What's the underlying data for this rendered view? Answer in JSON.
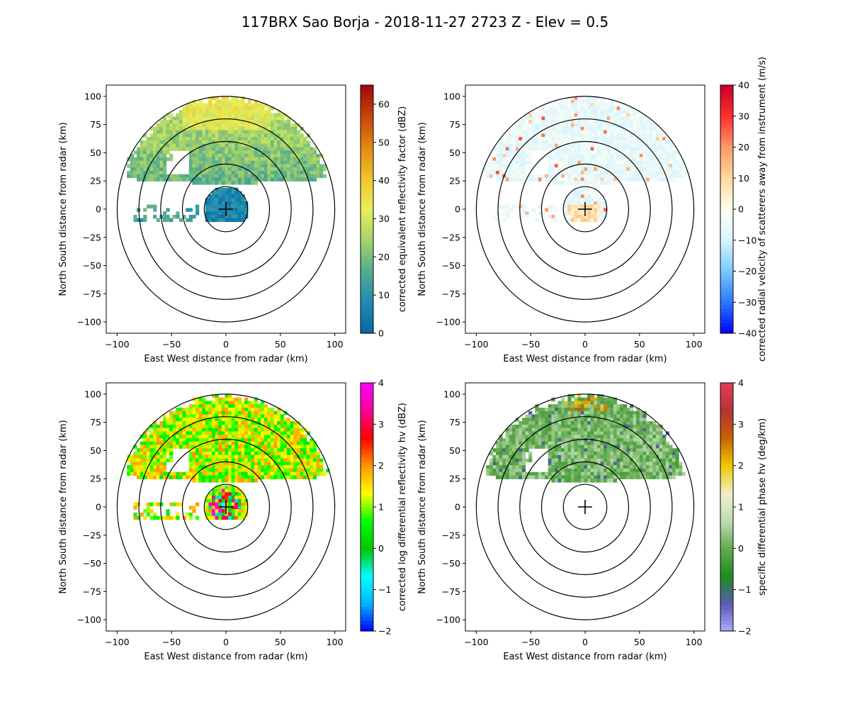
{
  "figure": {
    "title": "117BRX Sao Borja - 2018-11-27 2723 Z -  Elev = 0.5"
  },
  "chart_data": [
    {
      "type": "heatmap",
      "field": "reflectivity",
      "xlabel": "East West distance from radar (km)",
      "ylabel": "North South distance from radar (km)",
      "xlim": [
        -110,
        110
      ],
      "ylim": [
        -110,
        110
      ],
      "xticks": [
        "−100",
        "−50",
        "0",
        "50",
        "100"
      ],
      "yticks": [
        "100",
        "75",
        "50",
        "25",
        "0",
        "−25",
        "−50",
        "−75",
        "−100"
      ],
      "range_rings_km": [
        20,
        40,
        60,
        80,
        100
      ],
      "colorbar": {
        "label": "corrected equivalent reflectivity factor (dBZ)",
        "min": 0,
        "max": 65,
        "ticks": [
          "0",
          "10",
          "20",
          "30",
          "40",
          "50",
          "60"
        ],
        "tick_values": [
          0,
          10,
          20,
          30,
          40,
          50,
          60
        ],
        "stops": [
          "#0a64a8",
          "#1e8db0",
          "#55ab8f",
          "#a3d36a",
          "#e8ef5a",
          "#f0c52c",
          "#e08a12",
          "#c8440a",
          "#a00a0a"
        ]
      },
      "echo_description": "Echo mostly north of radar, 0-35 dBZ"
    },
    {
      "type": "heatmap",
      "field": "velocity",
      "xlabel": "East West distance from radar (km)",
      "ylabel": "North South distance from radar (km)",
      "xlim": [
        -110,
        110
      ],
      "ylim": [
        -110,
        110
      ],
      "xticks": [
        "−100",
        "−50",
        "0",
        "50",
        "100"
      ],
      "yticks": [
        "100",
        "75",
        "50",
        "25",
        "0",
        "−25",
        "−50",
        "−75",
        "−100"
      ],
      "range_rings_km": [
        20,
        40,
        60,
        80,
        100
      ],
      "colorbar": {
        "label": "corrected radial velocity of scatterers away from instrument (m/s)",
        "min": -40,
        "max": 40,
        "ticks": [
          "−40",
          "−30",
          "−20",
          "−10",
          "0",
          "10",
          "20",
          "30",
          "40"
        ],
        "tick_values": [
          -40,
          -30,
          -20,
          -10,
          0,
          10,
          20,
          30,
          40
        ],
        "stops": [
          "#0000ff",
          "#2a78ff",
          "#78c8ff",
          "#d8f4ff",
          "#fffff0",
          "#ffd9a0",
          "#ff9a6a",
          "#ff3030",
          "#c8002a"
        ]
      },
      "echo_description": "Mostly light blue (about −10 m/s) to the north"
    },
    {
      "type": "heatmap",
      "field": "differential_reflectivity",
      "xlabel": "East West distance from radar (km)",
      "ylabel": "North South distance from radar (km)",
      "xlim": [
        -110,
        110
      ],
      "ylim": [
        -110,
        110
      ],
      "xticks": [
        "−100",
        "−50",
        "0",
        "50",
        "100"
      ],
      "yticks": [
        "100",
        "75",
        "50",
        "25",
        "0",
        "−25",
        "−50",
        "−75",
        "−100"
      ],
      "range_rings_km": [
        20,
        40,
        60,
        80,
        100
      ],
      "colorbar": {
        "label": "corrected log differential reflectivity hv (dBZ)",
        "min": -2,
        "max": 4,
        "ticks": [
          "−2",
          "−1",
          "0",
          "1",
          "2",
          "3",
          "4"
        ],
        "tick_values": [
          -2,
          -1,
          0,
          1,
          2,
          3,
          4
        ],
        "stops": [
          "#0000ff",
          "#00b4ff",
          "#00ffff",
          "#00c800",
          "#00ff00",
          "#ffff00",
          "#ff9600",
          "#ff0000",
          "#ff0096",
          "#ff00ff"
        ]
      },
      "echo_description": "Mostly 0.5-2 dB north of radar"
    },
    {
      "type": "heatmap",
      "field": "specific_differential_phase",
      "xlabel": "East West distance from radar (km)",
      "ylabel": "North South distance from radar (km)",
      "xlim": [
        -110,
        110
      ],
      "ylim": [
        -110,
        110
      ],
      "xticks": [
        "−100",
        "−50",
        "0",
        "50",
        "100"
      ],
      "yticks": [
        "100",
        "75",
        "50",
        "25",
        "0",
        "−25",
        "−50",
        "−75",
        "−100"
      ],
      "range_rings_km": [
        20,
        40,
        60,
        80,
        100
      ],
      "colorbar": {
        "label": "specific differential phase hv (deg/km)",
        "min": -2,
        "max": 4,
        "ticks": [
          "−2",
          "−1",
          "0",
          "1",
          "2",
          "3",
          "4"
        ],
        "tick_values": [
          -2,
          -1,
          0,
          1,
          2,
          3,
          4
        ],
        "stops": [
          "#aaaaff",
          "#5a5ab4",
          "#1e8c1e",
          "#64aa50",
          "#bedcb4",
          "#f0f0c8",
          "#f0c800",
          "#c86400",
          "#b43232",
          "#e83c5a"
        ]
      },
      "echo_description": "Mostly near 0 deg/km north of radar"
    }
  ]
}
